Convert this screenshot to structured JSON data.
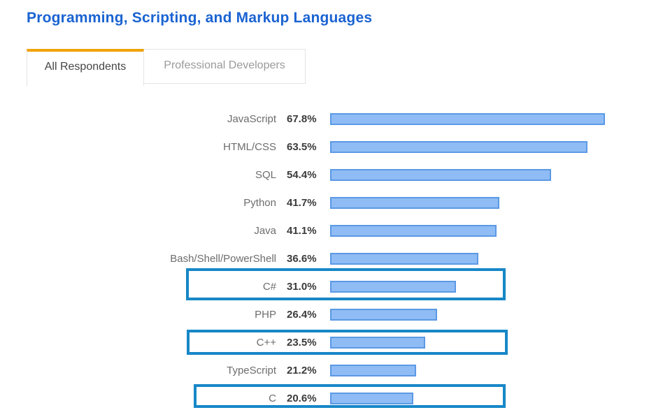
{
  "title": "Programming, Scripting, and Markup Languages",
  "tabs": [
    {
      "label": "All Respondents",
      "active": true
    },
    {
      "label": "Professional Developers",
      "active": false
    }
  ],
  "colors": {
    "title": "#1a63d2",
    "tab_active_border": "#f0a30b",
    "bar_fill": "#8fbcf4",
    "bar_border": "#5b99e5",
    "highlight_border": "#1787c7"
  },
  "chart_data": {
    "type": "bar",
    "orientation": "horizontal",
    "title": "Programming, Scripting, and Markup Languages",
    "categories": [
      "JavaScript",
      "HTML/CSS",
      "SQL",
      "Python",
      "Java",
      "Bash/Shell/PowerShell",
      "C#",
      "PHP",
      "C++",
      "TypeScript",
      "C"
    ],
    "values": [
      67.8,
      63.5,
      54.4,
      41.7,
      41.1,
      36.6,
      31.0,
      26.4,
      23.5,
      21.2,
      20.6
    ],
    "value_labels": [
      "67.8%",
      "63.5%",
      "54.4%",
      "41.7%",
      "41.1%",
      "36.6%",
      "31.0%",
      "26.4%",
      "23.5%",
      "21.2%",
      "20.6%"
    ],
    "highlighted": [
      "C#",
      "C++",
      "C"
    ],
    "xlim": [
      0,
      100
    ],
    "legend": null,
    "grid": false
  }
}
